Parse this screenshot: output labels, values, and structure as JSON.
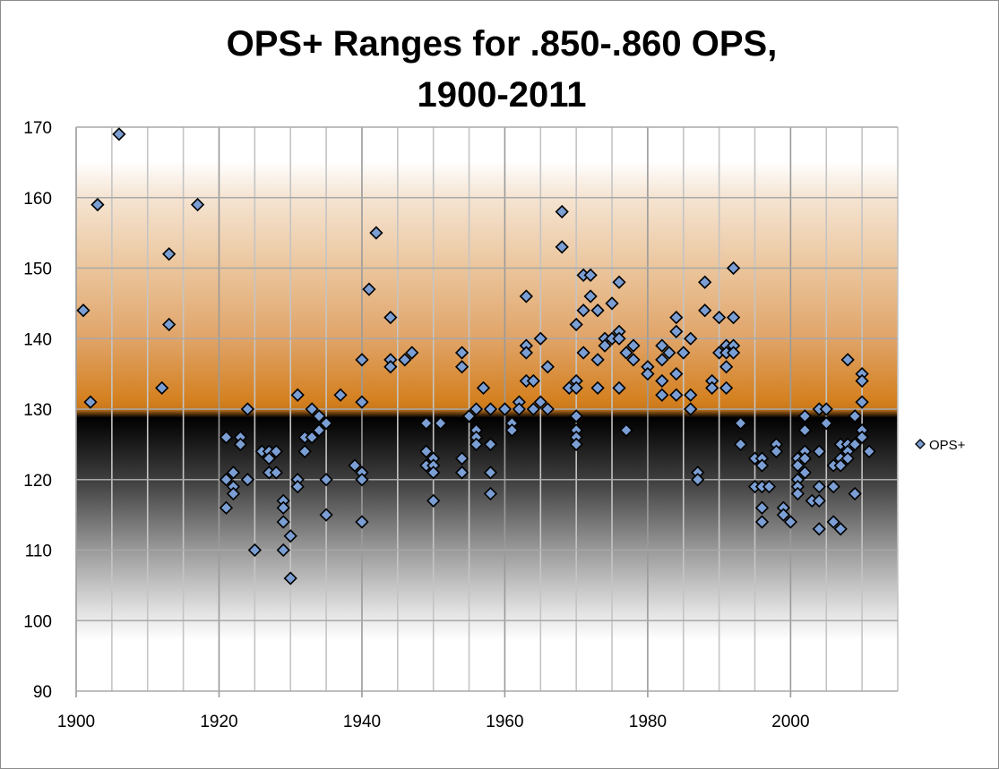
{
  "chart_data": {
    "type": "scatter",
    "title_lines": [
      "OPS+ Ranges for .850-.860 OPS,",
      "1900-2011"
    ],
    "xlabel": "",
    "ylabel": "",
    "xlim": [
      1900,
      2015
    ],
    "ylim": [
      90,
      170
    ],
    "x_ticks": [
      "1900",
      "1920",
      "1940",
      "1960",
      "1980",
      "2000"
    ],
    "y_ticks": [
      "90",
      "100",
      "110",
      "120",
      "130",
      "140",
      "150",
      "160",
      "170"
    ],
    "grid": true,
    "legend_position": "right",
    "background": "gradient: white at top, orange to 130, black below 130 fading to white near 100",
    "colors": {
      "marker_fill": "#7b9fd4",
      "marker_stroke": "#000000",
      "orange": "#d4801f",
      "black": "#000000"
    },
    "series": [
      {
        "name": "OPS+",
        "marker": "diamond",
        "points": [
          [
            1901,
            144
          ],
          [
            1902,
            131
          ],
          [
            1903,
            159
          ],
          [
            1906,
            169
          ],
          [
            1912,
            133
          ],
          [
            1913,
            152
          ],
          [
            1913,
            142
          ],
          [
            1917,
            159
          ],
          [
            1921,
            126
          ],
          [
            1921,
            120
          ],
          [
            1921,
            116
          ],
          [
            1922,
            121
          ],
          [
            1922,
            119
          ],
          [
            1922,
            118
          ],
          [
            1923,
            126
          ],
          [
            1923,
            125
          ],
          [
            1924,
            130
          ],
          [
            1924,
            120
          ],
          [
            1925,
            110
          ],
          [
            1926,
            124
          ],
          [
            1927,
            124
          ],
          [
            1927,
            123
          ],
          [
            1927,
            121
          ],
          [
            1928,
            124
          ],
          [
            1928,
            121
          ],
          [
            1929,
            117
          ],
          [
            1929,
            116
          ],
          [
            1929,
            114
          ],
          [
            1929,
            110
          ],
          [
            1930,
            112
          ],
          [
            1930,
            106
          ],
          [
            1931,
            132
          ],
          [
            1931,
            120
          ],
          [
            1931,
            119
          ],
          [
            1932,
            126
          ],
          [
            1932,
            124
          ],
          [
            1933,
            130
          ],
          [
            1933,
            126
          ],
          [
            1934,
            129
          ],
          [
            1934,
            127
          ],
          [
            1935,
            128
          ],
          [
            1935,
            120
          ],
          [
            1935,
            115
          ],
          [
            1937,
            132
          ],
          [
            1939,
            122
          ],
          [
            1940,
            137
          ],
          [
            1940,
            131
          ],
          [
            1940,
            121
          ],
          [
            1940,
            120
          ],
          [
            1940,
            114
          ],
          [
            1941,
            147
          ],
          [
            1942,
            155
          ],
          [
            1944,
            143
          ],
          [
            1944,
            137
          ],
          [
            1944,
            136
          ],
          [
            1946,
            137
          ],
          [
            1947,
            138
          ],
          [
            1949,
            128
          ],
          [
            1949,
            124
          ],
          [
            1949,
            122
          ],
          [
            1950,
            123
          ],
          [
            1950,
            122
          ],
          [
            1950,
            121
          ],
          [
            1950,
            117
          ],
          [
            1951,
            128
          ],
          [
            1954,
            138
          ],
          [
            1954,
            136
          ],
          [
            1954,
            123
          ],
          [
            1954,
            121
          ],
          [
            1955,
            129
          ],
          [
            1956,
            130
          ],
          [
            1956,
            127
          ],
          [
            1956,
            126
          ],
          [
            1956,
            125
          ],
          [
            1957,
            133
          ],
          [
            1958,
            130
          ],
          [
            1958,
            125
          ],
          [
            1958,
            121
          ],
          [
            1958,
            118
          ],
          [
            1960,
            130
          ],
          [
            1961,
            128
          ],
          [
            1961,
            127
          ],
          [
            1962,
            131
          ],
          [
            1962,
            130
          ],
          [
            1963,
            146
          ],
          [
            1963,
            139
          ],
          [
            1963,
            138
          ],
          [
            1963,
            134
          ],
          [
            1964,
            134
          ],
          [
            1964,
            130
          ],
          [
            1965,
            140
          ],
          [
            1965,
            131
          ],
          [
            1966,
            136
          ],
          [
            1966,
            130
          ],
          [
            1968,
            158
          ],
          [
            1968,
            153
          ],
          [
            1969,
            133
          ],
          [
            1970,
            142
          ],
          [
            1970,
            134
          ],
          [
            1970,
            133
          ],
          [
            1970,
            129
          ],
          [
            1970,
            127
          ],
          [
            1970,
            126
          ],
          [
            1970,
            125
          ],
          [
            1971,
            149
          ],
          [
            1971,
            144
          ],
          [
            1971,
            138
          ],
          [
            1972,
            149
          ],
          [
            1972,
            146
          ],
          [
            1973,
            144
          ],
          [
            1973,
            137
          ],
          [
            1973,
            133
          ],
          [
            1974,
            140
          ],
          [
            1974,
            139
          ],
          [
            1975,
            145
          ],
          [
            1975,
            140
          ],
          [
            1976,
            148
          ],
          [
            1976,
            141
          ],
          [
            1976,
            140
          ],
          [
            1976,
            133
          ],
          [
            1977,
            138
          ],
          [
            1977,
            127
          ],
          [
            1978,
            139
          ],
          [
            1978,
            137
          ],
          [
            1980,
            136
          ],
          [
            1980,
            135
          ],
          [
            1982,
            139
          ],
          [
            1982,
            137
          ],
          [
            1982,
            134
          ],
          [
            1982,
            132
          ],
          [
            1983,
            138
          ],
          [
            1984,
            143
          ],
          [
            1984,
            141
          ],
          [
            1984,
            135
          ],
          [
            1984,
            132
          ],
          [
            1985,
            138
          ],
          [
            1986,
            140
          ],
          [
            1986,
            132
          ],
          [
            1986,
            130
          ],
          [
            1987,
            121
          ],
          [
            1987,
            120
          ],
          [
            1988,
            148
          ],
          [
            1988,
            144
          ],
          [
            1989,
            134
          ],
          [
            1989,
            133
          ],
          [
            1990,
            143
          ],
          [
            1990,
            138
          ],
          [
            1991,
            139
          ],
          [
            1991,
            138
          ],
          [
            1991,
            136
          ],
          [
            1991,
            133
          ],
          [
            1992,
            150
          ],
          [
            1992,
            143
          ],
          [
            1992,
            139
          ],
          [
            1992,
            138
          ],
          [
            1993,
            128
          ],
          [
            1993,
            125
          ],
          [
            1995,
            123
          ],
          [
            1995,
            119
          ],
          [
            1996,
            123
          ],
          [
            1996,
            122
          ],
          [
            1996,
            119
          ],
          [
            1996,
            116
          ],
          [
            1996,
            114
          ],
          [
            1997,
            119
          ],
          [
            1998,
            125
          ],
          [
            1998,
            124
          ],
          [
            1999,
            116
          ],
          [
            1999,
            115
          ],
          [
            2000,
            114
          ],
          [
            2001,
            123
          ],
          [
            2001,
            122
          ],
          [
            2001,
            120
          ],
          [
            2001,
            119
          ],
          [
            2001,
            118
          ],
          [
            2002,
            129
          ],
          [
            2002,
            127
          ],
          [
            2002,
            124
          ],
          [
            2002,
            123
          ],
          [
            2002,
            121
          ],
          [
            2003,
            117
          ],
          [
            2004,
            130
          ],
          [
            2004,
            124
          ],
          [
            2004,
            119
          ],
          [
            2004,
            117
          ],
          [
            2004,
            113
          ],
          [
            2005,
            130
          ],
          [
            2005,
            128
          ],
          [
            2006,
            122
          ],
          [
            2006,
            119
          ],
          [
            2006,
            114
          ],
          [
            2007,
            125
          ],
          [
            2007,
            123
          ],
          [
            2007,
            122
          ],
          [
            2007,
            113
          ],
          [
            2008,
            137
          ],
          [
            2008,
            125
          ],
          [
            2008,
            124
          ],
          [
            2008,
            123
          ],
          [
            2009,
            129
          ],
          [
            2009,
            125
          ],
          [
            2009,
            118
          ],
          [
            2010,
            135
          ],
          [
            2010,
            134
          ],
          [
            2010,
            131
          ],
          [
            2010,
            127
          ],
          [
            2010,
            126
          ],
          [
            2011,
            124
          ]
        ]
      }
    ]
  }
}
